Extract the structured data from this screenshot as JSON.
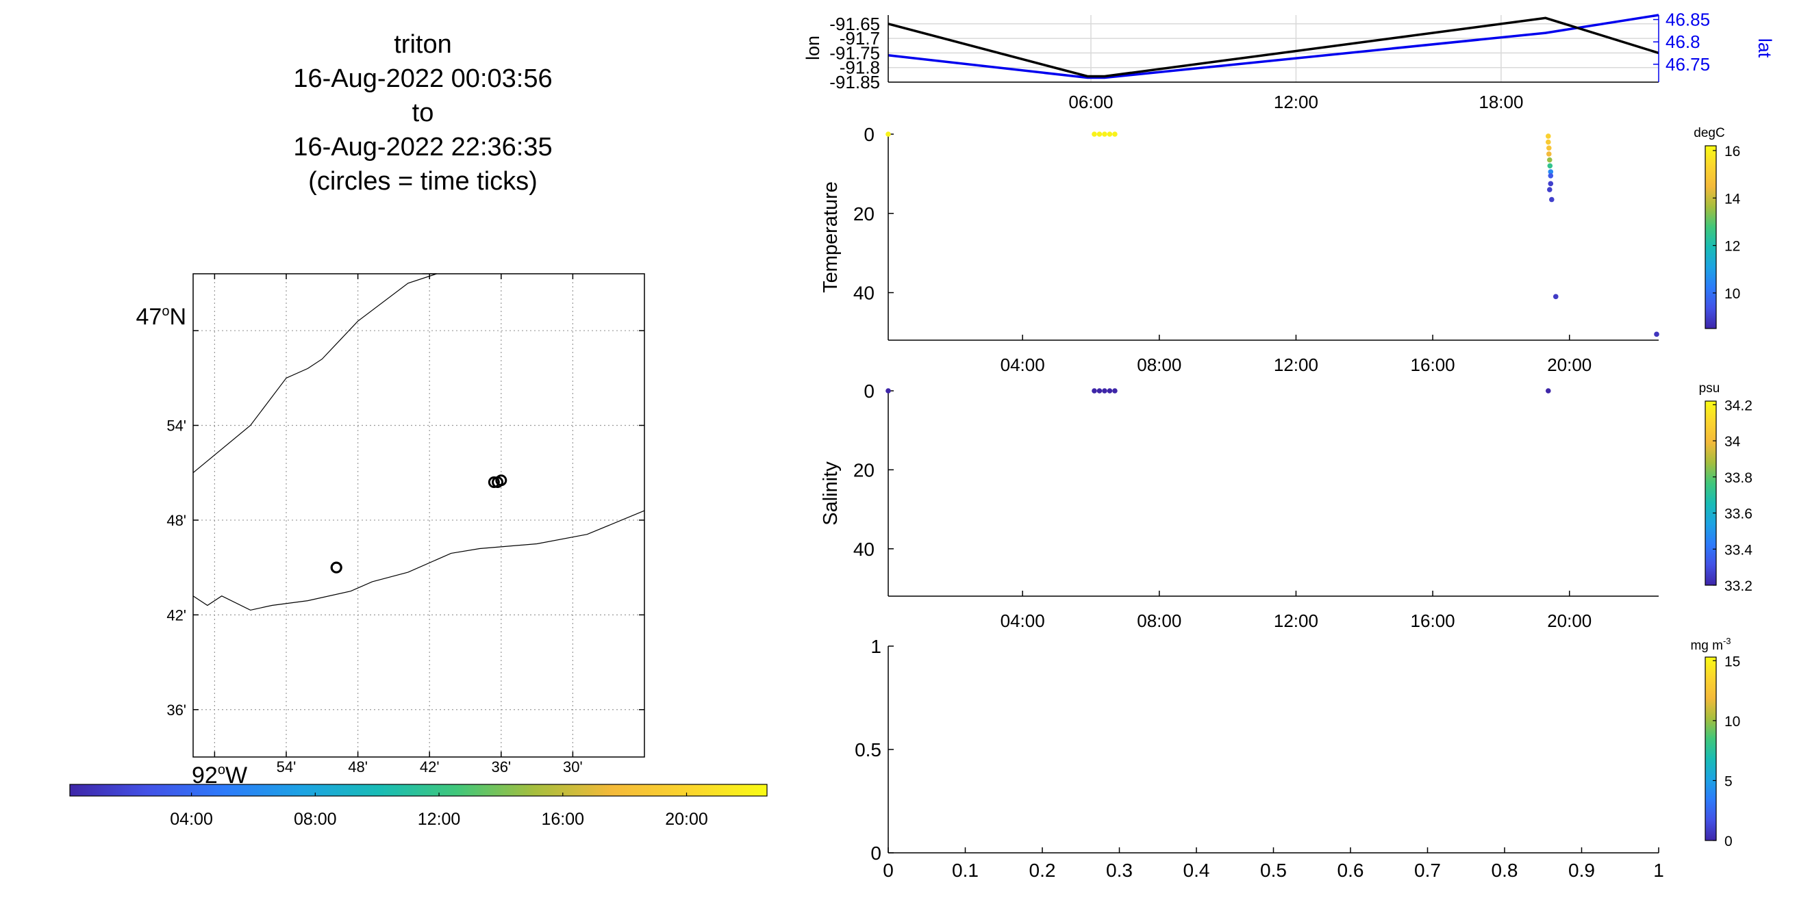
{
  "title": {
    "line1": "triton",
    "line2": "16-Aug-2022 00:03:56",
    "line3": "to",
    "line4": "16-Aug-2022 22:36:35",
    "line5": "(circles = time ticks)"
  },
  "colors": {
    "lon_line": "#000000",
    "lat_line": "#0000ee",
    "grid": "#d9d9d9",
    "colormap": [
      "#3e26a8",
      "#4352e6",
      "#2d7bfa",
      "#1da3e3",
      "#19bcb5",
      "#41c77a",
      "#a6be3e",
      "#f4ba3a",
      "#fbd52e",
      "#f9fb15"
    ]
  },
  "chart_data": [
    {
      "type": "map",
      "xlabel_ticks": [
        "54'",
        "48'",
        "42'",
        "36'",
        "30'"
      ],
      "x_corner_label": "92",
      "x_corner_suffix": "W",
      "ylabel_ticks": [
        "54'",
        "48'",
        "42'",
        "36'"
      ],
      "y_corner_label": "47",
      "y_corner_suffix": "N",
      "xlim": [
        -92.03,
        -91.4
      ],
      "ylim": [
        46.55,
        47.06
      ],
      "xgrid": [
        -92.0,
        -91.9,
        -91.8,
        -91.7,
        -91.6,
        -91.5
      ],
      "ygrid": [
        47.0,
        46.9,
        46.8,
        46.7,
        46.6
      ],
      "coast_north": [
        [
          -92.03,
          46.85
        ],
        [
          -91.95,
          46.9
        ],
        [
          -91.9,
          46.95
        ],
        [
          -91.87,
          46.96
        ],
        [
          -91.85,
          46.97
        ],
        [
          -91.8,
          47.01
        ],
        [
          -91.73,
          47.05
        ],
        [
          -91.69,
          47.06
        ],
        [
          -91.71,
          47.06
        ]
      ],
      "coast_south": [
        [
          -92.03,
          46.72
        ],
        [
          -92.01,
          46.71
        ],
        [
          -91.99,
          46.72
        ],
        [
          -91.95,
          46.705
        ],
        [
          -91.92,
          46.71
        ],
        [
          -91.87,
          46.715
        ],
        [
          -91.81,
          46.725
        ],
        [
          -91.78,
          46.735
        ],
        [
          -91.73,
          46.745
        ],
        [
          -91.67,
          46.765
        ],
        [
          -91.63,
          46.77
        ],
        [
          -91.55,
          46.775
        ],
        [
          -91.48,
          46.785
        ],
        [
          -91.4,
          46.81
        ]
      ],
      "time_circles": [
        [
          -91.83,
          46.75
        ],
        [
          -91.83,
          46.75
        ],
        [
          -91.61,
          46.84
        ],
        [
          -91.605,
          46.84
        ],
        [
          -91.6,
          46.842
        ]
      ],
      "colorbar_ticks": [
        "04:00",
        "08:00",
        "12:00",
        "16:00",
        "20:00"
      ],
      "colorbar_hours": [
        4,
        8,
        12,
        16,
        20
      ],
      "colorbar_range": [
        0.07,
        22.6
      ]
    },
    {
      "type": "line",
      "x_hours_range": [
        0.07,
        22.61
      ],
      "xticks": [
        "06:00",
        "12:00",
        "18:00"
      ],
      "xtick_hours": [
        6,
        12,
        18
      ],
      "ylabel_left": "lon",
      "ylabel_right": "lat",
      "left_ticks": [
        "-91.65",
        "-91.7",
        "-91.75",
        "-91.8",
        "-91.85"
      ],
      "left_ylim": [
        -91.85,
        -91.62
      ],
      "right_ticks": [
        "46.85",
        "46.8",
        "46.75"
      ],
      "right_ylim": [
        46.71,
        46.86
      ],
      "series": [
        {
          "name": "lon",
          "x_hours": [
            0.07,
            5.9,
            6.4,
            19.3,
            22.61
          ],
          "values": [
            -91.65,
            -91.83,
            -91.83,
            -91.63,
            -91.75
          ]
        },
        {
          "name": "lat",
          "x_hours": [
            0.07,
            5.9,
            6.4,
            19.3,
            22.61
          ],
          "values": [
            46.77,
            46.72,
            46.72,
            46.82,
            46.86
          ]
        }
      ]
    },
    {
      "type": "scatter",
      "ylabel": "Temperature",
      "units": "degC",
      "yticks": [
        "0",
        "20",
        "40"
      ],
      "ytick_values": [
        0,
        20,
        40
      ],
      "ylim": [
        0,
        52
      ],
      "xticks": [
        "04:00",
        "08:00",
        "12:00",
        "16:00",
        "20:00"
      ],
      "xtick_hours": [
        4,
        8,
        12,
        16,
        20
      ],
      "xlim": [
        0.07,
        22.61
      ],
      "cticks": [
        "16",
        "14",
        "12",
        "10"
      ],
      "ctick_values": [
        16,
        14,
        12,
        10
      ],
      "clim": [
        8.5,
        16.2
      ],
      "points": [
        [
          0.07,
          0,
          16
        ],
        [
          6.1,
          0,
          16
        ],
        [
          6.25,
          0,
          16
        ],
        [
          6.4,
          0,
          16
        ],
        [
          6.55,
          0,
          16
        ],
        [
          6.7,
          0,
          16
        ],
        [
          19.38,
          0.5,
          15.2
        ],
        [
          19.38,
          2,
          15
        ],
        [
          19.4,
          3.5,
          14.8
        ],
        [
          19.4,
          5,
          14.5
        ],
        [
          19.42,
          6.5,
          13.5
        ],
        [
          19.43,
          8,
          12.5
        ],
        [
          19.45,
          9.5,
          10.5
        ],
        [
          19.45,
          10.5,
          9.5
        ],
        [
          19.45,
          12.5,
          9.0
        ],
        [
          19.42,
          14,
          9.0
        ],
        [
          19.48,
          16.5,
          9.0
        ],
        [
          19.6,
          41,
          8.9
        ],
        [
          22.55,
          50.5,
          8.8
        ]
      ]
    },
    {
      "type": "scatter",
      "ylabel": "Salinity",
      "units": "psu",
      "yticks": [
        "0",
        "20",
        "40"
      ],
      "ytick_values": [
        0,
        20,
        40
      ],
      "ylim": [
        0,
        52
      ],
      "xticks": [
        "04:00",
        "08:00",
        "12:00",
        "16:00",
        "20:00"
      ],
      "xtick_hours": [
        4,
        8,
        12,
        16,
        20
      ],
      "xlim": [
        0.07,
        22.61
      ],
      "cticks": [
        "34.2",
        "34",
        "33.8",
        "33.6",
        "33.4",
        "33.2"
      ],
      "ctick_values": [
        34.2,
        34,
        33.8,
        33.6,
        33.4,
        33.2
      ],
      "clim": [
        33.2,
        34.22
      ],
      "points": [
        [
          0.07,
          0,
          33.2
        ],
        [
          6.1,
          0,
          33.2
        ],
        [
          6.25,
          0,
          33.2
        ],
        [
          6.4,
          0,
          33.2
        ],
        [
          6.55,
          0,
          33.2
        ],
        [
          6.7,
          0,
          33.2
        ],
        [
          19.38,
          0,
          33.2
        ]
      ]
    },
    {
      "type": "scatter",
      "units_base": "mg m",
      "units_sup": "-3",
      "xticks": [
        "0",
        "0.1",
        "0.2",
        "0.3",
        "0.4",
        "0.5",
        "0.6",
        "0.7",
        "0.8",
        "0.9",
        "1"
      ],
      "xtick_values": [
        0,
        0.1,
        0.2,
        0.3,
        0.4,
        0.5,
        0.6,
        0.7,
        0.8,
        0.9,
        1
      ],
      "yticks": [
        "1",
        "0.5",
        "0"
      ],
      "ytick_values": [
        1,
        0.5,
        0
      ],
      "xlim": [
        0,
        1
      ],
      "ylim": [
        0,
        1
      ],
      "cticks": [
        "15",
        "10",
        "5",
        "0"
      ],
      "ctick_values": [
        15,
        10,
        5,
        0
      ],
      "clim": [
        0,
        15.3
      ],
      "points": []
    }
  ]
}
